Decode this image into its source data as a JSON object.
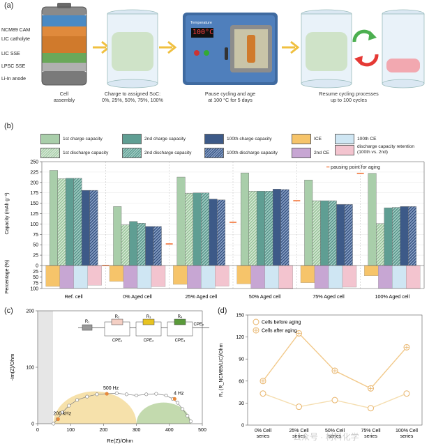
{
  "panel_a": {
    "letter": "(a)",
    "battery_labels": [
      "NCM89 CAM",
      "LIC catholyte",
      "LIC SSE",
      "LPSC SSE",
      "Li-In anode"
    ],
    "oven_display_label": "Temperature",
    "oven_display_value": "100°C",
    "captions": [
      "Cell\nassembly",
      "Charge to assigned SoC:\n0%, 25%, 50%, 75%, 100%",
      "Pause cycling and age\nat 100 °C for 5 days",
      "Resume cycling processes\nup to 100 cycles"
    ]
  },
  "panel_b": {
    "letter": "(b)",
    "legend": [
      "1st charge capacity",
      "2nd charge capacity",
      "100th charge capacity",
      "ICE",
      "100th CE",
      "1st discharge capacity",
      "2nd discharge capacity",
      "100th discharge capacity",
      "2nd CE",
      "discharge capacity retention (100th vs. 2nd)"
    ],
    "pause_label": "pausing point for aging"
  },
  "chart_data": [
    {
      "type": "bar",
      "title": "",
      "ylabel": "Capacity (mAh g⁻¹)",
      "ylim": [
        0,
        250
      ],
      "yticks": [
        0,
        25,
        50,
        75,
        100,
        125,
        150,
        175,
        200,
        225,
        250
      ],
      "categories": [
        "Ref. cell",
        "0% Aged cell",
        "25% Aged cell",
        "50% Aged cell",
        "75% Aged cell",
        "100% Aged cell"
      ],
      "series": [
        {
          "name": "1st charge capacity",
          "values": [
            229,
            142,
            213,
            223,
            206,
            222
          ]
        },
        {
          "name": "1st discharge capacity",
          "values": [
            209,
            98,
            174,
            179,
            156,
            101
          ]
        },
        {
          "name": "2nd charge capacity",
          "values": [
            210,
            106,
            175,
            179,
            156,
            139
          ]
        },
        {
          "name": "2nd discharge capacity",
          "values": [
            210,
            102,
            175,
            179,
            156,
            140
          ]
        },
        {
          "name": "100th charge capacity",
          "values": [
            181,
            94,
            160,
            184,
            147,
            142
          ]
        },
        {
          "name": "100th discharge capacity",
          "values": [
            181,
            94,
            158,
            183,
            147,
            142
          ]
        }
      ],
      "pausing_points": [
        0,
        52,
        104,
        156,
        222
      ]
    },
    {
      "type": "bar",
      "ylabel": "Percentage (%)",
      "ylim": [
        0,
        100
      ],
      "yticks": [
        0,
        25,
        50,
        75,
        100
      ],
      "inverted": true,
      "categories": [
        "Ref. cell",
        "0% Aged cell",
        "25% Aged cell",
        "50% Aged cell",
        "75% Aged cell",
        "100% Aged cell"
      ],
      "series": [
        {
          "name": "ICE",
          "values": [
            91,
            69,
            82,
            80,
            75,
            45
          ]
        },
        {
          "name": "2nd CE",
          "values": [
            99,
            97,
            99,
            99,
            99,
            99
          ]
        },
        {
          "name": "100th CE",
          "values": [
            99,
            99,
            99,
            99,
            99,
            99
          ]
        },
        {
          "name": "discharge capacity retention (100th vs. 2nd)",
          "values": [
            86,
            92,
            90,
            102,
            94,
            101
          ]
        }
      ]
    },
    {
      "type": "line",
      "letter": "(c)",
      "xlabel": "Re(Z)/Ohm",
      "ylabel": "-Im(Z)/Ohm",
      "xlim": [
        0,
        500
      ],
      "ylim": [
        0,
        200
      ],
      "xticks": [
        0,
        100,
        200,
        300,
        400,
        500
      ],
      "yticks": [
        0,
        100,
        200
      ],
      "x": [
        48,
        60,
        75,
        95,
        120,
        150,
        180,
        210,
        240,
        270,
        300,
        330,
        360,
        390,
        410,
        425,
        440,
        455,
        465
      ],
      "y": [
        0,
        8,
        20,
        32,
        42,
        48,
        52,
        53,
        54,
        52,
        50,
        52,
        53,
        50,
        44,
        37,
        26,
        14,
        4
      ],
      "annotations": [
        {
          "text": "200 kHz",
          "x": 62,
          "y": 8
        },
        {
          "text": "500 Hz",
          "x": 210,
          "y": 53
        },
        {
          "text": "4 Hz",
          "x": 416,
          "y": 44
        }
      ],
      "circuit_labels": [
        "R₁",
        "R₂",
        "CPE₁",
        "R₃",
        "CPE₂",
        "R₄",
        "CPE₃",
        "CPEₚ"
      ]
    },
    {
      "type": "line",
      "letter": "(d)",
      "ylabel": "R₁ (R_NCM89/LIC)/Ohm",
      "ylim": [
        0,
        150
      ],
      "yticks": [
        0,
        30,
        60,
        90,
        120,
        150
      ],
      "categories": [
        "0% Cell\nseries",
        "25% Cell\nseries",
        "50% Cell\nseries",
        "75% Cell\nseries",
        "100% Cell\nseries"
      ],
      "series": [
        {
          "name": "Cells before aging",
          "values": [
            43,
            25,
            34,
            23,
            43
          ]
        },
        {
          "name": "Cells after aging",
          "values": [
            60,
            125,
            74,
            50,
            106
          ]
        }
      ]
    }
  ],
  "watermark": "公众号 · 材料化学"
}
